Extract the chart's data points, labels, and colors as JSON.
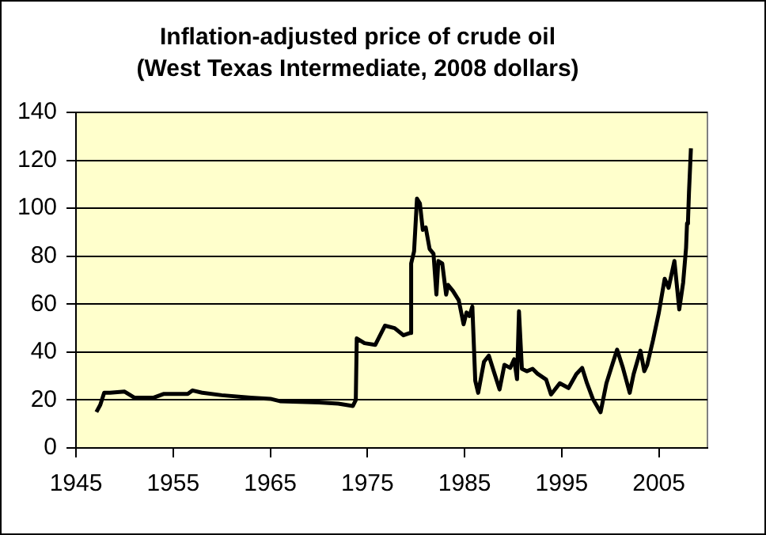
{
  "chart_data": {
    "type": "line",
    "title": "Inflation-adjusted price of crude oil",
    "subtitle": "(West Texas Intermediate, 2008 dollars)",
    "series": [
      {
        "color": "#000000",
        "x": [
          1947.1,
          1947.5,
          1947.9,
          1948.5,
          1950,
          1951,
          1953,
          1954,
          1956.5,
          1957,
          1958,
          1960,
          1963,
          1965,
          1966,
          1970,
          1972,
          1973.5,
          1973.8,
          1973.9,
          1974.7,
          1975.8,
          1976.8,
          1977.8,
          1978.7,
          1979.4,
          1979.5,
          1979.8,
          1980.1,
          1980.4,
          1980.7,
          1981,
          1981.4,
          1981.8,
          1982.1,
          1982.3,
          1982.7,
          1983.1,
          1983.3,
          1983.8,
          1984.4,
          1984.9,
          1985.2,
          1985.5,
          1985.8,
          1986.1,
          1986.4,
          1986.7,
          1987,
          1987.5,
          1988,
          1988.6,
          1989.1,
          1989.7,
          1990.1,
          1990.4,
          1990.6,
          1990.9,
          1991.4,
          1992,
          1992.5,
          1993.4,
          1993.9,
          1994.8,
          1995.7,
          1996.5,
          1997.1,
          1997.6,
          1998.2,
          1999,
          1999.6,
          2000.1,
          2000.7,
          2001.3,
          2002,
          2002.4,
          2003.1,
          2003.5,
          2003.8,
          2004.4,
          2005,
          2005.6,
          2006,
          2006.6,
          2007.1,
          2007.5,
          2007.8,
          2007.9,
          2008,
          2008.1,
          2008.3
        ],
        "values": [
          15,
          18,
          23,
          23,
          23.5,
          21,
          21,
          22.5,
          22.5,
          24,
          23,
          22,
          21,
          20.5,
          19.5,
          19,
          18.5,
          17.5,
          20,
          45.7,
          43.7,
          43,
          51,
          50,
          47,
          48,
          77,
          82,
          104,
          102,
          91,
          92,
          83,
          81,
          64,
          78,
          77,
          64,
          68,
          65.5,
          61.6,
          51.6,
          56.5,
          55,
          59,
          28,
          23,
          29.5,
          36,
          38.5,
          32,
          24.4,
          34.7,
          33.4,
          37,
          28.7,
          57,
          33,
          32,
          33,
          31,
          28.5,
          22.3,
          27,
          25,
          30.8,
          33.4,
          27,
          20.5,
          14.9,
          27,
          33.4,
          41,
          33.4,
          23,
          30.8,
          40.6,
          32,
          34.7,
          45,
          56.5,
          70.6,
          66.8,
          78,
          57.8,
          69,
          83.5,
          93.7,
          95,
          106.6,
          125
        ]
      }
    ],
    "xlim": [
      1945,
      2010
    ],
    "xticks": [
      1945,
      1955,
      1965,
      1975,
      1985,
      1995,
      2005
    ],
    "ylim": [
      0,
      140
    ],
    "yticks": [
      0,
      20,
      40,
      60,
      80,
      100,
      120,
      140
    ],
    "grid": "y",
    "legend": false,
    "marker": "none",
    "line_style": "solid"
  }
}
